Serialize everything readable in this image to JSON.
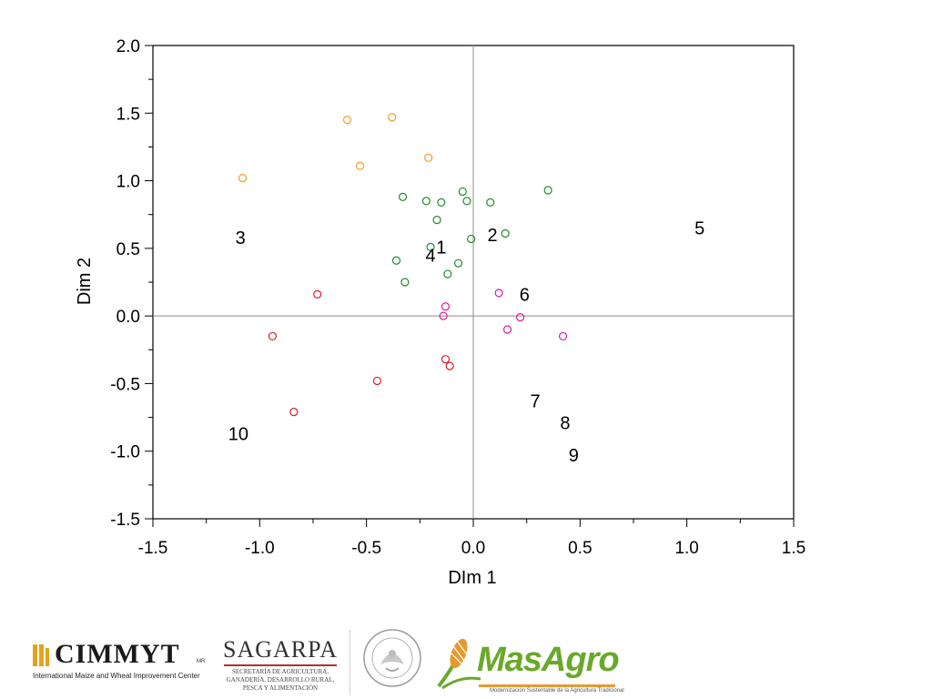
{
  "chart_data": {
    "type": "scatter",
    "xlabel": "DIm 1",
    "ylabel": "Dim 2",
    "xlim": [
      -1.5,
      1.5
    ],
    "ylim": [
      -1.5,
      2.0
    ],
    "xticks": [
      "-1.5",
      "-1.0",
      "-0.5",
      "0.0",
      "0.5",
      "1.0",
      "1.5"
    ],
    "yticks": [
      "-1.5",
      "-1.0",
      "-0.5",
      "0.0",
      "0.5",
      "1.0",
      "1.5",
      "2.0"
    ],
    "reference_lines": {
      "x": 0,
      "y": 0
    },
    "grid": false,
    "series": [
      {
        "color": "#F39C2B",
        "points": [
          [
            -0.59,
            1.45
          ],
          [
            -0.38,
            1.47
          ],
          [
            -0.21,
            1.17
          ],
          [
            -0.53,
            1.11
          ],
          [
            -1.08,
            1.02
          ]
        ]
      },
      {
        "color": "#1E8C2A",
        "points": [
          [
            -0.33,
            0.88
          ],
          [
            -0.22,
            0.85
          ],
          [
            -0.15,
            0.84
          ],
          [
            -0.05,
            0.92
          ],
          [
            -0.03,
            0.85
          ],
          [
            0.08,
            0.84
          ],
          [
            0.35,
            0.93
          ],
          [
            -0.17,
            0.71
          ],
          [
            0.15,
            0.61
          ],
          [
            -0.01,
            0.57
          ],
          [
            -0.2,
            0.51
          ],
          [
            -0.36,
            0.41
          ],
          [
            -0.07,
            0.39
          ],
          [
            -0.12,
            0.31
          ],
          [
            -0.32,
            0.25
          ]
        ]
      },
      {
        "color": "#E0199B",
        "points": [
          [
            0.12,
            0.17
          ],
          [
            -0.13,
            0.07
          ],
          [
            -0.14,
            0.0
          ],
          [
            0.22,
            -0.01
          ],
          [
            0.16,
            -0.1
          ],
          [
            0.42,
            -0.15
          ]
        ]
      },
      {
        "color": "#D81C2A",
        "points": [
          [
            -0.73,
            0.16
          ],
          [
            -0.94,
            -0.15
          ],
          [
            -0.13,
            -0.32
          ],
          [
            -0.11,
            -0.37
          ],
          [
            -0.45,
            -0.48
          ],
          [
            -0.84,
            -0.71
          ]
        ]
      }
    ],
    "labels": [
      {
        "text": "1",
        "x": -0.15,
        "y": 0.51
      },
      {
        "text": "2",
        "x": 0.09,
        "y": 0.6
      },
      {
        "text": "3",
        "x": -1.09,
        "y": 0.58
      },
      {
        "text": "4",
        "x": -0.2,
        "y": 0.45
      },
      {
        "text": "5",
        "x": 1.06,
        "y": 0.65
      },
      {
        "text": "6",
        "x": 0.24,
        "y": 0.16
      },
      {
        "text": "7",
        "x": 0.29,
        "y": -0.63
      },
      {
        "text": "8",
        "x": 0.43,
        "y": -0.79
      },
      {
        "text": "9",
        "x": 0.47,
        "y": -1.03
      },
      {
        "text": "10",
        "x": -1.1,
        "y": -0.87
      }
    ]
  },
  "footer": {
    "cimmyt": {
      "name": "CIMMYT",
      "mark": "MR",
      "subtitle": "International Maize and Wheat Improvement Center"
    },
    "sagarpa": {
      "name": "SAGARPA",
      "subtitle_lines": [
        "SECRETARÍA DE AGRICULTURA,",
        "GANADERÍA, DESARROLLO RURAL,",
        "PESCA Y ALIMENTACIÓN"
      ]
    },
    "seal": {
      "icon": "mexican-eagle-seal-icon",
      "text": "ESTADOS UNIDOS MEXICANOS"
    },
    "masagro": {
      "name": "MasAgro",
      "subtitle": "Modernización Sustentable de la Agricultura Tradicional",
      "icon": "corn-plant-icon"
    }
  }
}
